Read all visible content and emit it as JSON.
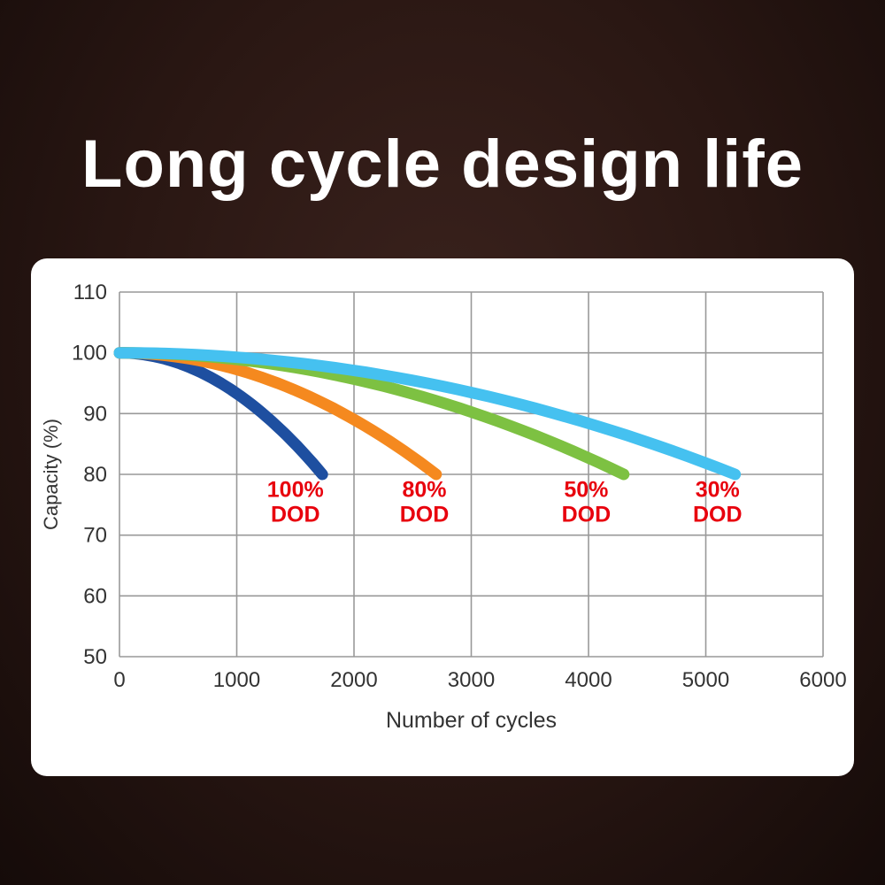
{
  "title": "Long cycle design life",
  "chart_data": {
    "type": "line",
    "title": "Long cycle design life",
    "xlabel": "Number of cycles",
    "ylabel": "Capacity (%)",
    "xlim": [
      0,
      6000
    ],
    "ylim": [
      50,
      110
    ],
    "x_ticks": [
      0,
      1000,
      2000,
      3000,
      4000,
      5000,
      6000
    ],
    "y_ticks": [
      50,
      60,
      70,
      80,
      90,
      100,
      110
    ],
    "grid": true,
    "grid_color": "#999999",
    "tick_color": "#333333",
    "label_color": "#e8000d",
    "label_y": 76.3,
    "label_line_gap_y": 4.1,
    "series": [
      {
        "name": "100% DOD",
        "color": "#1e4fa0",
        "start_capacity": 100,
        "end_capacity": 80,
        "end_cycles": 1730,
        "label_x": 1500,
        "label_lines": [
          "100%",
          "DOD"
        ]
      },
      {
        "name": "80% DOD",
        "color": "#f5891f",
        "start_capacity": 100,
        "end_capacity": 80,
        "end_cycles": 2700,
        "label_x": 2600,
        "label_lines": [
          "80%",
          "DOD"
        ]
      },
      {
        "name": "50% DOD",
        "color": "#7dc142",
        "start_capacity": 100,
        "end_capacity": 80,
        "end_cycles": 4300,
        "label_x": 3980,
        "label_lines": [
          "50%",
          "DOD"
        ]
      },
      {
        "name": "30% DOD",
        "color": "#45c1f0",
        "start_capacity": 100,
        "end_capacity": 80,
        "end_cycles": 5250,
        "label_x": 5100,
        "label_lines": [
          "30%",
          "DOD"
        ]
      }
    ]
  }
}
